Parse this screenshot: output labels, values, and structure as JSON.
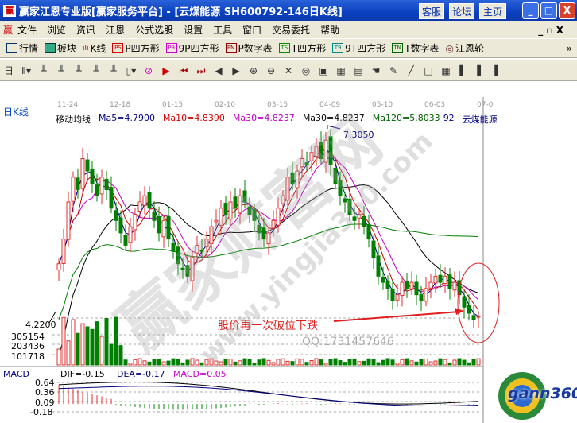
{
  "window": {
    "title": "赢家江恩专业版[赢家服务平台] - [云煤能源   SH600792-146日K线]",
    "buttons": [
      "客服",
      "论坛",
      "主页"
    ],
    "controls": [
      "_",
      "□",
      "X"
    ]
  },
  "menu": [
    "文件",
    "浏览",
    "资讯",
    "江恩",
    "公式选股",
    "设置",
    "工具",
    "窗口",
    "交易委托",
    "帮助"
  ],
  "toolbar": [
    {
      "icon": "PS",
      "label": "P四方形"
    },
    {
      "icon": "P9",
      "label": "9P四方形"
    },
    {
      "icon": "PN",
      "label": "P数字表"
    },
    {
      "icon": "TS",
      "label": "T四方形"
    },
    {
      "icon": "T9",
      "label": "9T四方形"
    },
    {
      "icon": "TN",
      "label": "T数字表"
    }
  ],
  "toolbar_extra": {
    "quotes": "行情",
    "blocks": "板块",
    "kline": "K线",
    "wheel": "江恩轮",
    "more": "»"
  },
  "chart": {
    "period_label": "日K线",
    "dates": [
      "11-24",
      "12-18",
      "01-15",
      "02-10",
      "03-15",
      "04-09",
      "05-10",
      "06-03",
      "07-0"
    ],
    "ma_title": "移动均线",
    "ma": [
      {
        "label": "Ma5=4.7900",
        "color": "#000080"
      },
      {
        "label": "Ma10=4.8390",
        "color": "#d00000"
      },
      {
        "label": "Ma30=4.8237",
        "color": "#c000c0"
      },
      {
        "label": "Ma30=4.8237",
        "color": "#000000"
      },
      {
        "label": "Ma120=5.8033",
        "color": "#006000"
      }
    ],
    "code_suffix": "92",
    "stock_name": "云煤能源",
    "high_label": "7.3050",
    "low_label": "4.2200",
    "annotation": "股价再一次破位下跌",
    "watermark_qq": "QQ:1731457646",
    "watermark_url": "www.yingjia360.com",
    "watermark_brand": "赢家财富网",
    "volume_ticks": [
      "305154",
      "203436",
      "101718"
    ],
    "macd": {
      "title": "MACD",
      "dif": "DIF=-0.15",
      "dea": "DEA=-0.17",
      "macd": "MACD=0.05",
      "ticks": [
        "0.64",
        "0.36",
        "0.09",
        "-0.18"
      ]
    },
    "logo_text": "gann360"
  },
  "chart_data": {
    "type": "candlestick",
    "closes": [
      5.2,
      5.6,
      6.2,
      6.6,
      6.4,
      6.9,
      6.7,
      6.5,
      6.3,
      6.6,
      6.4,
      6.1,
      5.9,
      5.7,
      5.5,
      5.8,
      6.0,
      6.2,
      6.3,
      6.1,
      5.9,
      5.7,
      5.9,
      5.6,
      5.4,
      5.2,
      5.1,
      5.0,
      5.3,
      5.5,
      5.4,
      5.6,
      5.8,
      5.9,
      6.1,
      6.0,
      6.2,
      6.1,
      6.3,
      6.2,
      6.0,
      5.9,
      5.7,
      5.6,
      5.7,
      5.9,
      6.1,
      6.3,
      6.6,
      6.5,
      6.7,
      6.9,
      6.8,
      7.0,
      7.1,
      6.9,
      7.2,
      6.8,
      6.5,
      6.3,
      6.2,
      6.0,
      5.9,
      6.0,
      5.8,
      5.6,
      5.3,
      5.0,
      4.9,
      4.8,
      4.6,
      4.7,
      4.9,
      4.8,
      4.9,
      4.7,
      4.6,
      4.8,
      4.9,
      5.0,
      4.9,
      5.0,
      4.8,
      4.9,
      4.7,
      4.5,
      4.4,
      4.3,
      4.35
    ],
    "price_range": [
      4.22,
      7.305
    ],
    "macd_range": [
      -0.25,
      0.7
    ]
  }
}
